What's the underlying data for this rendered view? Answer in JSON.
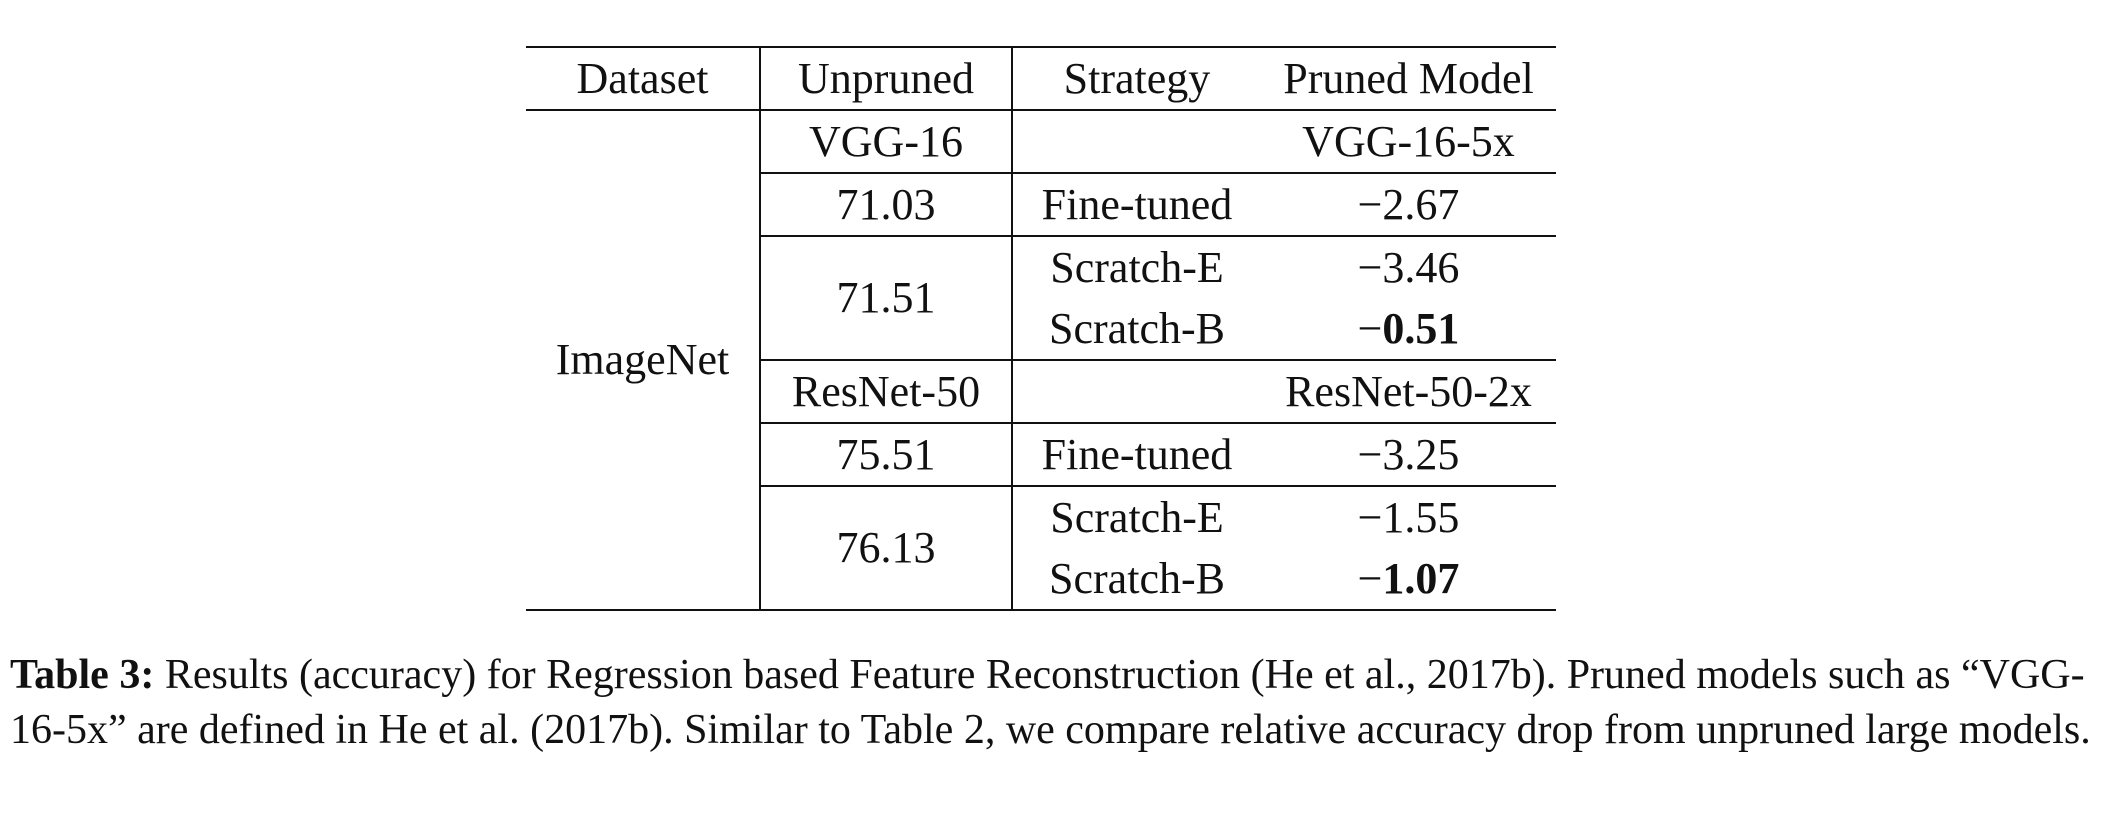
{
  "table": {
    "headers": {
      "dataset": "Dataset",
      "unpruned": "Unpruned",
      "strategy": "Strategy",
      "pruned_model": "Pruned Model"
    },
    "dataset": "ImageNet",
    "groups": [
      {
        "unpruned_model": "VGG-16",
        "pruned_model": "VGG-16-5x",
        "blocks": [
          {
            "unpruned": "71.03",
            "rows": [
              {
                "strategy": "Fine-tuned",
                "sign": "−",
                "value": "2.67",
                "bold": false
              }
            ]
          },
          {
            "unpruned": "71.51",
            "rows": [
              {
                "strategy": "Scratch-E",
                "sign": "−",
                "value": "3.46",
                "bold": false
              },
              {
                "strategy": "Scratch-B",
                "sign": "−",
                "value": "0.51",
                "bold": true
              }
            ]
          }
        ]
      },
      {
        "unpruned_model": "ResNet-50",
        "pruned_model": "ResNet-50-2x",
        "blocks": [
          {
            "unpruned": "75.51",
            "rows": [
              {
                "strategy": "Fine-tuned",
                "sign": "−",
                "value": "3.25",
                "bold": false
              }
            ]
          },
          {
            "unpruned": "76.13",
            "rows": [
              {
                "strategy": "Scratch-E",
                "sign": "−",
                "value": "1.55",
                "bold": false
              },
              {
                "strategy": "Scratch-B",
                "sign": "−",
                "value": "1.07",
                "bold": true
              }
            ]
          }
        ]
      }
    ]
  },
  "caption": {
    "label": "Table 3:",
    "text": " Results (accuracy) for Regression based Feature Reconstruction (He et al., 2017b). Pruned models such as “VGG-16-5x” are defined in He et al. (2017b). Similar to Table 2, we compare relative accuracy drop from unpruned large models."
  }
}
